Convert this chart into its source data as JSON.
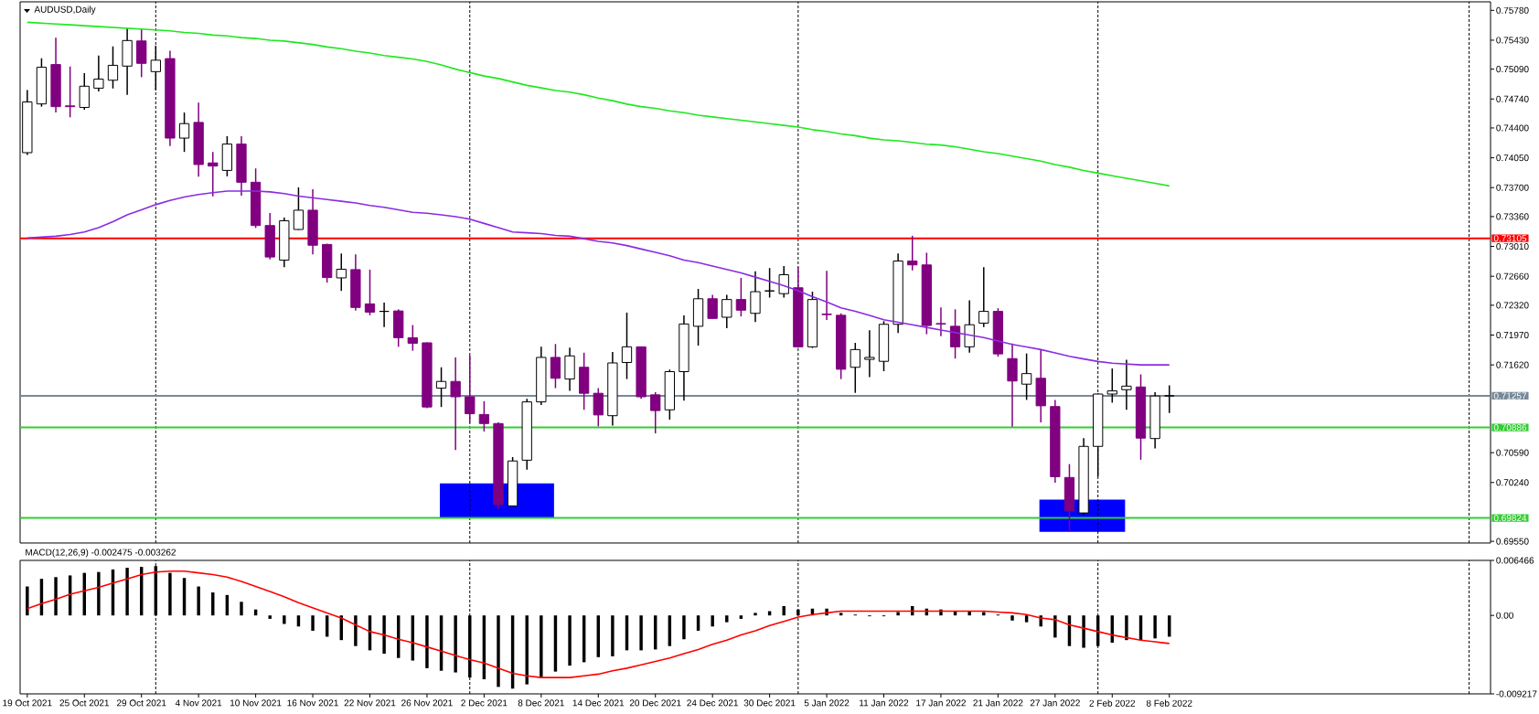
{
  "chart_data": [
    {
      "type": "candlestick",
      "title": "AUDUSD,Daily",
      "categories": [
        null,
        null,
        null,
        null,
        null,
        null,
        null,
        null,
        null,
        null,
        null,
        null,
        null,
        null,
        null,
        null,
        null,
        null,
        null,
        null,
        null,
        null,
        null,
        null,
        null,
        null,
        null,
        null,
        null,
        null,
        null,
        null,
        null,
        null,
        null,
        null,
        null,
        null,
        null,
        null,
        null,
        null,
        null,
        null,
        null,
        null,
        null,
        null,
        null,
        null,
        null,
        null,
        null,
        null,
        null,
        null,
        null,
        null,
        null,
        null,
        null,
        null,
        null,
        null,
        null,
        null,
        null,
        null,
        null,
        null,
        null,
        null,
        null,
        null,
        null,
        null,
        null,
        null,
        null,
        null,
        null,
        null,
        null,
        null,
        null,
        null,
        null,
        null,
        null,
        null,
        null,
        null,
        null,
        null,
        null,
        null,
        null,
        null,
        null,
        null,
        null,
        null,
        null
      ],
      "ohlc": [
        [
          0.7411,
          0.74844,
          0.74082,
          0.74705
        ],
        [
          0.74682,
          0.75218,
          0.7465,
          0.75112
        ],
        [
          0.75144,
          0.75458,
          0.74581,
          0.7465
        ],
        [
          0.74659,
          0.75121,
          0.74525,
          0.7465
        ],
        [
          0.74641,
          0.75043,
          0.74613,
          0.7489
        ],
        [
          0.74867,
          0.75251,
          0.7483,
          0.74973
        ],
        [
          0.7496,
          0.75357,
          0.74863,
          0.75135
        ],
        [
          0.75126,
          0.75565,
          0.74789,
          0.75426
        ],
        [
          0.75421,
          0.75565,
          0.74996,
          0.75158
        ],
        [
          0.75061,
          0.75366,
          0.74844,
          0.75195
        ],
        [
          0.75214,
          0.75306,
          0.74188,
          0.74281
        ],
        [
          0.74281,
          0.74581,
          0.74119,
          0.74451
        ],
        [
          0.74465,
          0.74696,
          0.73828,
          0.73971
        ],
        [
          0.7399,
          0.74119,
          0.73597,
          0.73953
        ],
        [
          0.73902,
          0.74304,
          0.73832,
          0.74211
        ],
        [
          0.74211,
          0.74304,
          0.73606,
          0.73763
        ],
        [
          0.73763,
          0.73925,
          0.73227,
          0.73255
        ],
        [
          0.73255,
          0.73403,
          0.72858,
          0.72886
        ],
        [
          0.72849,
          0.73348,
          0.72766,
          0.73311
        ],
        [
          0.73209,
          0.73703,
          0.73204,
          0.73435
        ],
        [
          0.73435,
          0.7368,
          0.72918,
          0.73024
        ],
        [
          0.73033,
          0.73042,
          0.72585,
          0.72645
        ],
        [
          0.72641,
          0.72927,
          0.72488,
          0.72742
        ],
        [
          0.72738,
          0.72918,
          0.72257,
          0.72294
        ],
        [
          0.72336,
          0.72738,
          0.72202,
          0.72239
        ],
        [
          0.72248,
          0.7235,
          0.72063,
          0.72248
        ],
        [
          0.72253,
          0.72272,
          0.71832,
          0.71939
        ],
        [
          0.71939,
          0.72087,
          0.71786,
          0.71874
        ],
        [
          0.71879,
          0.71885,
          0.71112,
          0.71126
        ],
        [
          0.71347,
          0.71592,
          0.71126,
          0.71426
        ],
        [
          0.71426,
          0.71708,
          0.70622,
          0.71246
        ],
        [
          0.71246,
          0.71731,
          0.70941,
          0.71047
        ],
        [
          0.71038,
          0.71195,
          0.70839,
          0.70932
        ],
        [
          0.70932,
          0.70946,
          0.69925,
          0.6998
        ],
        [
          0.69966,
          0.70539,
          0.69958,
          0.70493
        ],
        [
          0.70502,
          0.71223,
          0.70391,
          0.71186
        ],
        [
          0.71186,
          0.71832,
          0.71149,
          0.71708
        ],
        [
          0.71708,
          0.71865,
          0.71347,
          0.71463
        ],
        [
          0.71454,
          0.71823,
          0.71315,
          0.71726
        ],
        [
          0.71592,
          0.71763,
          0.71093,
          0.71287
        ],
        [
          0.71287,
          0.71347,
          0.70899,
          0.71033
        ],
        [
          0.71024,
          0.71772,
          0.70909,
          0.71643
        ],
        [
          0.71648,
          0.72234,
          0.71454,
          0.71832
        ],
        [
          0.71832,
          0.71837,
          0.71223,
          0.71246
        ],
        [
          0.71269,
          0.71301,
          0.70816,
          0.71084
        ],
        [
          0.71093,
          0.71565,
          0.70978,
          0.71541
        ],
        [
          0.71541,
          0.72202,
          0.712,
          0.721
        ],
        [
          0.72073,
          0.72511,
          0.71846,
          0.72396
        ],
        [
          0.72396,
          0.72442,
          0.7216,
          0.72165
        ],
        [
          0.72179,
          0.72442,
          0.7205,
          0.72387
        ],
        [
          0.72387,
          0.72641,
          0.72188,
          0.72262
        ],
        [
          0.72225,
          0.72719,
          0.72123,
          0.72479
        ],
        [
          0.72488,
          0.72756,
          0.7241,
          0.72488
        ],
        [
          0.72456,
          0.72779,
          0.7241,
          0.72678
        ],
        [
          0.72525,
          0.7277,
          0.71823,
          0.71832
        ],
        [
          0.71832,
          0.72479,
          0.71818,
          0.72387
        ],
        [
          0.72216,
          0.72724,
          0.72147,
          0.7221
        ],
        [
          0.72202,
          0.72225,
          0.71454,
          0.71569
        ],
        [
          0.71592,
          0.71879,
          0.71292,
          0.718
        ],
        [
          0.71685,
          0.72026,
          0.71477,
          0.71708
        ],
        [
          0.71662,
          0.72133,
          0.71546,
          0.72096
        ],
        [
          0.72096,
          0.72927,
          0.71994,
          0.72839
        ],
        [
          0.72839,
          0.73135,
          0.72729,
          0.72793
        ],
        [
          0.72793,
          0.72936,
          0.7198,
          0.72082
        ],
        [
          0.72105,
          0.72294,
          0.71957,
          0.721
        ],
        [
          0.72073,
          0.72272,
          0.71694,
          0.71832
        ],
        [
          0.71832,
          0.72378,
          0.71763,
          0.72091
        ],
        [
          0.7211,
          0.72766,
          0.72063,
          0.72248
        ],
        [
          0.72248,
          0.72285,
          0.71717,
          0.71749
        ],
        [
          0.71694,
          0.7187,
          0.70895,
          0.71431
        ],
        [
          0.71394,
          0.71754,
          0.71209,
          0.71518
        ],
        [
          0.71463,
          0.718,
          0.70946,
          0.7114
        ],
        [
          0.71131,
          0.71209,
          0.70239,
          0.70308
        ],
        [
          0.70299,
          0.70456,
          0.69662,
          0.69906
        ],
        [
          0.69883,
          0.70761,
          0.6986,
          0.70664
        ],
        [
          0.70664,
          0.71287,
          0.70308,
          0.71278
        ],
        [
          0.71278,
          0.71578,
          0.71177,
          0.71315
        ],
        [
          0.71329,
          0.7168,
          0.71093,
          0.71371
        ],
        [
          0.71361,
          0.71509,
          0.70507,
          0.70761
        ],
        [
          0.70756,
          0.71301,
          0.70641,
          0.71255
        ],
        [
          0.71257,
          0.7138,
          0.71056,
          0.71257
        ],
        null,
        null,
        null,
        null,
        null,
        null,
        null,
        null,
        null,
        null,
        null,
        null,
        null,
        null,
        null,
        null,
        null,
        null,
        null,
        null,
        null,
        null
      ],
      "colors": [
        "#ffffff",
        "#ffffff",
        "#800080",
        "#800080",
        "#ffffff",
        "#ffffff",
        "#ffffff",
        "#ffffff",
        "#800080",
        "#ffffff",
        "#800080",
        "#ffffff",
        "#800080",
        "#800080",
        "#ffffff",
        "#800080",
        "#800080",
        "#800080",
        "#ffffff",
        "#ffffff",
        "#800080",
        "#800080",
        "#ffffff",
        "#800080",
        "#800080",
        "#000000",
        "#800080",
        "#800080",
        "#800080",
        "#ffffff",
        "#800080",
        "#800080",
        "#800080",
        "#800080",
        "#ffffff",
        "#ffffff",
        "#ffffff",
        "#800080",
        "#ffffff",
        "#800080",
        "#800080",
        "#ffffff",
        "#ffffff",
        "#800080",
        "#800080",
        "#ffffff",
        "#ffffff",
        "#ffffff",
        "#800080",
        "#ffffff",
        "#800080",
        "#ffffff",
        "#000000",
        "#ffffff",
        "#800080",
        "#ffffff",
        "#800080",
        "#800080",
        "#ffffff",
        "#ffffff",
        "#ffffff",
        "#ffffff",
        "#800080",
        "#800080",
        "#800080",
        "#800080",
        "#ffffff",
        "#ffffff",
        "#800080",
        "#800080",
        "#ffffff",
        "#800080",
        "#800080",
        "#800080",
        "#ffffff",
        "#ffffff",
        "#ffffff",
        "#ffffff",
        "#800080",
        "#ffffff",
        "#000000",
        null,
        null,
        null,
        null,
        null,
        null,
        null,
        null,
        null,
        null,
        null,
        null,
        null,
        null,
        null,
        null,
        null,
        null,
        null,
        null,
        null,
        null
      ],
      "series": [
        {
          "type": "line",
          "color": "#1ee81e",
          "values": [
            0.7564,
            0.7563,
            0.7562,
            0.7561,
            0.756,
            0.7559,
            0.7558,
            0.7557,
            0.7556,
            0.7555,
            0.7554,
            0.7552,
            0.7551,
            0.7549,
            0.7548,
            0.7546,
            0.7545,
            0.7543,
            0.7542,
            0.754,
            0.7538,
            0.7535,
            0.7533,
            0.753,
            0.7528,
            0.7525,
            0.7523,
            0.7521,
            0.7518,
            0.7514,
            0.7509,
            0.7505,
            0.7501,
            0.7498,
            0.7494,
            0.749,
            0.7487,
            0.7484,
            0.7482,
            0.7479,
            0.7475,
            0.7472,
            0.7468,
            0.7465,
            0.7463,
            0.746,
            0.7458,
            0.7455,
            0.7453,
            0.7451,
            0.7449,
            0.7447,
            0.7445,
            0.7443,
            0.7441,
            0.7438,
            0.7436,
            0.7433,
            0.7431,
            0.7428,
            0.7426,
            0.7425,
            0.7423,
            0.7421,
            0.742,
            0.7418,
            0.7415,
            0.7412,
            0.741,
            0.7407,
            0.7404,
            0.7401,
            0.7397,
            0.7394,
            0.739,
            0.7387,
            0.7384,
            0.7381,
            0.7378,
            0.7375,
            0.7372,
            null,
            null,
            null,
            null,
            null,
            null,
            null,
            null,
            null,
            null,
            null,
            null,
            null,
            null,
            null,
            null,
            null,
            null,
            null,
            null,
            null,
            null
          ]
        },
        {
          "type": "line",
          "color": "#8a2be2",
          "values": [
            0.7311,
            0.7312,
            0.7313,
            0.7315,
            0.7318,
            0.7323,
            0.733,
            0.7338,
            0.7344,
            0.735,
            0.7355,
            0.7359,
            0.7362,
            0.7364,
            0.7366,
            0.7366,
            0.7366,
            0.7365,
            0.7363,
            0.736,
            0.7358,
            0.7356,
            0.7354,
            0.7352,
            0.7349,
            0.7347,
            0.7344,
            0.7341,
            0.734,
            0.7338,
            0.7336,
            0.7333,
            0.7328,
            0.7323,
            0.7318,
            0.7317,
            0.7316,
            0.7314,
            0.7313,
            0.731,
            0.7307,
            0.7305,
            0.7302,
            0.7298,
            0.7294,
            0.729,
            0.7285,
            0.7282,
            0.7278,
            0.7274,
            0.727,
            0.7265,
            0.726,
            0.7255,
            0.7249,
            0.7242,
            0.7236,
            0.7229,
            0.7225,
            0.722,
            0.7215,
            0.7212,
            0.7209,
            0.7206,
            0.7203,
            0.72,
            0.7197,
            0.7194,
            0.719,
            0.7186,
            0.7183,
            0.718,
            0.7176,
            0.7172,
            0.7169,
            0.7166,
            0.7164,
            0.7163,
            0.7162,
            0.7162,
            0.7162,
            null,
            null,
            null,
            null,
            null,
            null,
            null,
            null,
            null,
            null,
            null,
            null,
            null,
            null,
            null,
            null,
            null,
            null,
            null,
            null,
            null,
            null
          ]
        }
      ],
      "ylim": [
        0.6953,
        0.7588
      ],
      "yticks": [
        {
          "value": 0.7578,
          "label": "0.75780"
        },
        {
          "value": 0.7543,
          "label": "0.75430"
        },
        {
          "value": 0.7509,
          "label": "0.75090"
        },
        {
          "value": 0.7474,
          "label": "0.74740"
        },
        {
          "value": 0.744,
          "label": "0.74400"
        },
        {
          "value": 0.7405,
          "label": "0.74050"
        },
        {
          "value": 0.737,
          "label": "0.73700"
        },
        {
          "value": 0.7336,
          "label": "0.73360"
        },
        {
          "value": 0.7301,
          "label": "0.73010"
        },
        {
          "value": 0.7266,
          "label": "0.72660"
        },
        {
          "value": 0.7232,
          "label": "0.72320"
        },
        {
          "value": 0.7197,
          "label": "0.71970"
        },
        {
          "value": 0.7162,
          "label": "0.71620"
        },
        {
          "value": 0.7059,
          "label": "0.70590"
        },
        {
          "value": 0.7024,
          "label": "0.70240"
        },
        {
          "value": 0.6955,
          "label": "0.69550"
        }
      ],
      "tick_labels": "y",
      "grid": "x",
      "ref_lines": [
        {
          "axis": "y",
          "value": 0.73105,
          "label": "0.73105",
          "color": "#ff0000"
        },
        {
          "axis": "y",
          "value": 0.71257,
          "label": "0.71257",
          "color": "#778899"
        },
        {
          "axis": "y",
          "value": 0.70886,
          "label": "0.70886",
          "color": "#32cd32"
        },
        {
          "axis": "y",
          "value": 0.69824,
          "label": "0.69824",
          "color": "#32cd32"
        }
      ]
    },
    {
      "type": "bar",
      "title": "MACD(12,26,9) -0.002475 -0.003262",
      "categories": [
        "19 Oct 2021",
        null,
        null,
        null,
        "25 Oct 2021",
        null,
        null,
        null,
        "29 Oct 2021",
        null,
        null,
        null,
        "4 Nov 2021",
        null,
        null,
        null,
        "10 Nov 2021",
        null,
        null,
        null,
        "16 Nov 2021",
        null,
        null,
        null,
        "22 Nov 2021",
        null,
        null,
        null,
        "26 Nov 2021",
        null,
        null,
        null,
        "2 Dec 2021",
        null,
        null,
        null,
        "8 Dec 2021",
        null,
        null,
        null,
        "14 Dec 2021",
        null,
        null,
        null,
        "20 Dec 2021",
        null,
        null,
        null,
        "24 Dec 2021",
        null,
        null,
        null,
        "30 Dec 2021",
        null,
        null,
        null,
        "5 Jan 2022",
        null,
        null,
        null,
        "11 Jan 2022",
        null,
        null,
        null,
        "17 Jan 2022",
        null,
        null,
        null,
        "21 Jan 2022",
        null,
        null,
        null,
        "27 Jan 2022",
        null,
        null,
        null,
        "2 Feb 2022",
        null,
        null,
        null,
        "8 Feb 2022",
        null,
        null,
        null,
        null,
        null,
        null,
        null,
        null,
        null,
        null,
        null,
        null,
        null,
        null,
        null,
        null,
        null,
        null,
        null,
        null,
        null,
        null
      ],
      "series": [
        {
          "type": "bar",
          "color": "#000000",
          "values": [
            0.0034,
            0.0043,
            0.0045,
            0.0047,
            0.005,
            0.0051,
            0.0054,
            0.0056,
            0.0057,
            0.0058,
            0.005,
            0.0044,
            0.0034,
            0.0027,
            0.0024,
            0.0016,
            0.0007,
            -0.0004,
            -0.001,
            -0.0013,
            -0.0018,
            -0.0025,
            -0.0029,
            -0.0036,
            -0.0041,
            -0.0045,
            -0.005,
            -0.0053,
            -0.0062,
            -0.0065,
            -0.0067,
            -0.0073,
            -0.0075,
            -0.0084,
            -0.0086,
            -0.0081,
            -0.0073,
            -0.0066,
            -0.0059,
            -0.0055,
            -0.0049,
            -0.0048,
            -0.0041,
            -0.0041,
            -0.004,
            -0.0036,
            -0.0028,
            -0.0018,
            -0.0013,
            -0.0008,
            -0.0004,
            0.0003,
            0.0005,
            0.0011,
            0.0007,
            0.0008,
            0.0008,
            0.0003,
            0.0001,
            -0.0001,
            -0.0001,
            0.0004,
            0.0011,
            0.0008,
            0.0007,
            0.0005,
            0.0005,
            0.0004,
            0.0001,
            -0.0006,
            -0.0008,
            -0.0013,
            -0.0026,
            -0.0036,
            -0.0038,
            -0.0036,
            -0.0032,
            -0.0029,
            -0.0029,
            -0.0027,
            -0.0025,
            null,
            null,
            null,
            null,
            null,
            null,
            null,
            null,
            null,
            null,
            null,
            null,
            null,
            null,
            null,
            null,
            null,
            null,
            null,
            null,
            null,
            null
          ]
        },
        {
          "type": "line",
          "color": "#ff0000",
          "values": [
            0.0008,
            0.0014,
            0.0019,
            0.0025,
            0.0029,
            0.0033,
            0.0038,
            0.0043,
            0.0048,
            0.0051,
            0.0052,
            0.0052,
            0.005,
            0.0048,
            0.0045,
            0.004,
            0.0034,
            0.0028,
            0.0022,
            0.0015,
            0.0009,
            0.0003,
            -0.0003,
            -0.0011,
            -0.0019,
            -0.0023,
            -0.0028,
            -0.0032,
            -0.0037,
            -0.0042,
            -0.0047,
            -0.0052,
            -0.0056,
            -0.0062,
            -0.0068,
            -0.0071,
            -0.0073,
            -0.0073,
            -0.0073,
            -0.0071,
            -0.0069,
            -0.0065,
            -0.0062,
            -0.0058,
            -0.0054,
            -0.005,
            -0.0045,
            -0.004,
            -0.0034,
            -0.0029,
            -0.0023,
            -0.0018,
            -0.0012,
            -0.0007,
            -0.0002,
            0.0001,
            0.0003,
            0.0005,
            0.0005,
            0.0005,
            0.0005,
            0.0005,
            0.0005,
            0.0005,
            0.0005,
            0.0005,
            0.0005,
            0.0005,
            0.0004,
            0.0003,
            0.0001,
            -0.0003,
            -0.0005,
            -0.0011,
            -0.0015,
            -0.0019,
            -0.0023,
            -0.0026,
            -0.0029,
            -0.0031,
            -0.0033,
            null,
            null,
            null,
            null,
            null,
            null,
            null,
            null,
            null,
            null,
            null,
            null,
            null,
            null,
            null,
            null,
            null,
            null,
            null,
            null,
            null,
            null
          ]
        }
      ],
      "ylim": [
        -0.009217,
        0.006466
      ],
      "yticks": [
        0.006466,
        {
          "value": 0,
          "label": "0.00"
        },
        -0.009217
      ],
      "grid": "x"
    }
  ]
}
